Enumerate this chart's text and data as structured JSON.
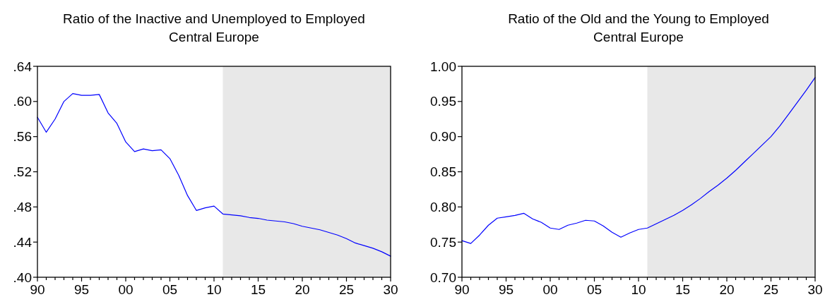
{
  "chart_data": [
    {
      "type": "line",
      "title": "Ratio of the Inactive and Unemployed to Employed\nCentral Europe",
      "x": [
        1990,
        1991,
        1992,
        1993,
        1994,
        1995,
        1996,
        1997,
        1998,
        1999,
        2000,
        2001,
        2002,
        2003,
        2004,
        2005,
        2006,
        2007,
        2008,
        2009,
        2010,
        2011,
        2012,
        2013,
        2014,
        2015,
        2016,
        2017,
        2018,
        2019,
        2020,
        2021,
        2022,
        2023,
        2024,
        2025,
        2026,
        2027,
        2028,
        2029,
        2030
      ],
      "series": [
        {
          "color": "#0000ff",
          "values": [
            0.582,
            0.565,
            0.58,
            0.6,
            0.609,
            0.607,
            0.607,
            0.608,
            0.587,
            0.575,
            0.554,
            0.543,
            0.546,
            0.544,
            0.545,
            0.535,
            0.516,
            0.493,
            0.476,
            0.479,
            0.481,
            0.472,
            0.471,
            0.47,
            0.468,
            0.467,
            0.465,
            0.464,
            0.463,
            0.461,
            0.458,
            0.456,
            0.454,
            0.451,
            0.448,
            0.444,
            0.439,
            0.436,
            0.433,
            0.429,
            0.424
          ]
        }
      ],
      "xlim": [
        1990,
        2030
      ],
      "xticks": [
        {
          "value": 1990,
          "label": "90"
        },
        {
          "value": 1991,
          "label": null
        },
        {
          "value": 1992,
          "label": null
        },
        {
          "value": 1993,
          "label": null
        },
        {
          "value": 1994,
          "label": null
        },
        {
          "value": 1995,
          "label": "95"
        },
        {
          "value": 1996,
          "label": null
        },
        {
          "value": 1997,
          "label": null
        },
        {
          "value": 1998,
          "label": null
        },
        {
          "value": 1999,
          "label": null
        },
        {
          "value": 2000,
          "label": "00"
        },
        {
          "value": 2001,
          "label": null
        },
        {
          "value": 2002,
          "label": null
        },
        {
          "value": 2003,
          "label": null
        },
        {
          "value": 2004,
          "label": null
        },
        {
          "value": 2005,
          "label": "05"
        },
        {
          "value": 2006,
          "label": null
        },
        {
          "value": 2007,
          "label": null
        },
        {
          "value": 2008,
          "label": null
        },
        {
          "value": 2009,
          "label": null
        },
        {
          "value": 2010,
          "label": "10"
        },
        {
          "value": 2011,
          "label": null
        },
        {
          "value": 2012,
          "label": null
        },
        {
          "value": 2013,
          "label": null
        },
        {
          "value": 2014,
          "label": null
        },
        {
          "value": 2015,
          "label": "15"
        },
        {
          "value": 2016,
          "label": null
        },
        {
          "value": 2017,
          "label": null
        },
        {
          "value": 2018,
          "label": null
        },
        {
          "value": 2019,
          "label": null
        },
        {
          "value": 2020,
          "label": "20"
        },
        {
          "value": 2021,
          "label": null
        },
        {
          "value": 2022,
          "label": null
        },
        {
          "value": 2023,
          "label": null
        },
        {
          "value": 2024,
          "label": null
        },
        {
          "value": 2025,
          "label": "25"
        },
        {
          "value": 2026,
          "label": null
        },
        {
          "value": 2027,
          "label": null
        },
        {
          "value": 2028,
          "label": null
        },
        {
          "value": 2029,
          "label": null
        },
        {
          "value": 2030,
          "label": "30"
        }
      ],
      "ylim": [
        0.4,
        0.64
      ],
      "yticks": [
        {
          "value": 0.4,
          "label": ".40"
        },
        {
          "value": 0.44,
          "label": ".44"
        },
        {
          "value": 0.48,
          "label": ".48"
        },
        {
          "value": 0.52,
          "label": ".52"
        },
        {
          "value": 0.56,
          "label": ".56"
        },
        {
          "value": 0.6,
          "label": ".60"
        },
        {
          "value": 0.64,
          "label": ".64"
        }
      ],
      "bands": [
        {
          "axis": "x",
          "from": 2011,
          "to": 2030,
          "color": "#e8e8e8"
        }
      ]
    },
    {
      "type": "line",
      "title": "Ratio of the Old and the Young to Employed\nCentral Europe",
      "x": [
        1990,
        1991,
        1992,
        1993,
        1994,
        1995,
        1996,
        1997,
        1998,
        1999,
        2000,
        2001,
        2002,
        2003,
        2004,
        2005,
        2006,
        2007,
        2008,
        2009,
        2010,
        2011,
        2012,
        2013,
        2014,
        2015,
        2016,
        2017,
        2018,
        2019,
        2020,
        2021,
        2022,
        2023,
        2024,
        2025,
        2026,
        2027,
        2028,
        2029,
        2030
      ],
      "series": [
        {
          "color": "#0000ff",
          "values": [
            0.752,
            0.748,
            0.76,
            0.774,
            0.784,
            0.786,
            0.788,
            0.791,
            0.783,
            0.778,
            0.77,
            0.768,
            0.774,
            0.777,
            0.781,
            0.78,
            0.773,
            0.764,
            0.757,
            0.763,
            0.768,
            0.77,
            0.776,
            0.782,
            0.788,
            0.795,
            0.803,
            0.812,
            0.822,
            0.831,
            0.841,
            0.852,
            0.864,
            0.876,
            0.888,
            0.9,
            0.915,
            0.932,
            0.949,
            0.966,
            0.984
          ]
        }
      ],
      "xlim": [
        1990,
        2030
      ],
      "xticks": [
        {
          "value": 1990,
          "label": "90"
        },
        {
          "value": 1991,
          "label": null
        },
        {
          "value": 1992,
          "label": null
        },
        {
          "value": 1993,
          "label": null
        },
        {
          "value": 1994,
          "label": null
        },
        {
          "value": 1995,
          "label": "95"
        },
        {
          "value": 1996,
          "label": null
        },
        {
          "value": 1997,
          "label": null
        },
        {
          "value": 1998,
          "label": null
        },
        {
          "value": 1999,
          "label": null
        },
        {
          "value": 2000,
          "label": "00"
        },
        {
          "value": 2001,
          "label": null
        },
        {
          "value": 2002,
          "label": null
        },
        {
          "value": 2003,
          "label": null
        },
        {
          "value": 2004,
          "label": null
        },
        {
          "value": 2005,
          "label": "05"
        },
        {
          "value": 2006,
          "label": null
        },
        {
          "value": 2007,
          "label": null
        },
        {
          "value": 2008,
          "label": null
        },
        {
          "value": 2009,
          "label": null
        },
        {
          "value": 2010,
          "label": "10"
        },
        {
          "value": 2011,
          "label": null
        },
        {
          "value": 2012,
          "label": null
        },
        {
          "value": 2013,
          "label": null
        },
        {
          "value": 2014,
          "label": null
        },
        {
          "value": 2015,
          "label": "15"
        },
        {
          "value": 2016,
          "label": null
        },
        {
          "value": 2017,
          "label": null
        },
        {
          "value": 2018,
          "label": null
        },
        {
          "value": 2019,
          "label": null
        },
        {
          "value": 2020,
          "label": "20"
        },
        {
          "value": 2021,
          "label": null
        },
        {
          "value": 2022,
          "label": null
        },
        {
          "value": 2023,
          "label": null
        },
        {
          "value": 2024,
          "label": null
        },
        {
          "value": 2025,
          "label": "25"
        },
        {
          "value": 2026,
          "label": null
        },
        {
          "value": 2027,
          "label": null
        },
        {
          "value": 2028,
          "label": null
        },
        {
          "value": 2029,
          "label": null
        },
        {
          "value": 2030,
          "label": "30"
        }
      ],
      "ylim": [
        0.7,
        1.0
      ],
      "yticks": [
        {
          "value": 0.7,
          "label": "0.70"
        },
        {
          "value": 0.75,
          "label": "0.75"
        },
        {
          "value": 0.8,
          "label": "0.80"
        },
        {
          "value": 0.85,
          "label": "0.85"
        },
        {
          "value": 0.9,
          "label": "0.90"
        },
        {
          "value": 0.95,
          "label": "0.95"
        },
        {
          "value": 1.0,
          "label": "1.00"
        }
      ],
      "bands": [
        {
          "axis": "x",
          "from": 2011,
          "to": 2030,
          "color": "#e8e8e8"
        }
      ]
    }
  ]
}
